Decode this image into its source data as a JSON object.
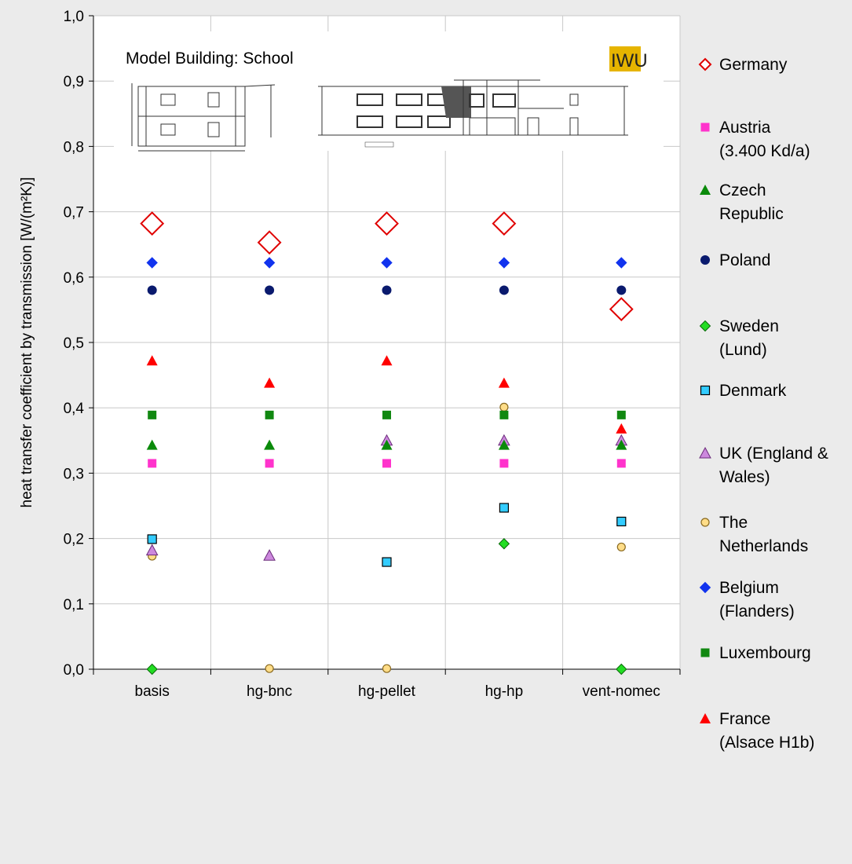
{
  "chart_data": {
    "type": "scatter",
    "title": "",
    "xlabel": "",
    "ylabel": "heat transfer coefficient by transmission [W/(m²K)]",
    "categories": [
      "basis",
      "hg-bnc",
      "hg-pellet",
      "hg-hp",
      "vent-nomec"
    ],
    "ylim": [
      0,
      1.0
    ],
    "yticks": [
      "0,0",
      "0,1",
      "0,2",
      "0,3",
      "0,4",
      "0,5",
      "0,6",
      "0,7",
      "0,8",
      "0,9",
      "1,0"
    ],
    "grid": true,
    "legend_position": "right",
    "inset_caption": "Model Building: School",
    "logo": {
      "text": "IWU",
      "color": "#e6b400"
    },
    "series": [
      {
        "name": [
          "Germany"
        ],
        "marker": "diamond-open-large",
        "color": "#e00000",
        "values": [
          0.682,
          0.653,
          0.682,
          0.682,
          0.551
        ]
      },
      {
        "name": [
          "Austria",
          "(3.400 Kd/a)"
        ],
        "marker": "square",
        "color": "#ff33cc",
        "values": [
          0.315,
          0.315,
          0.315,
          0.315,
          0.315
        ]
      },
      {
        "name": [
          "Czech",
          "Republic"
        ],
        "marker": "triangle",
        "color": "#0a8a0a",
        "values": [
          0.343,
          0.343,
          0.343,
          0.343,
          0.343
        ]
      },
      {
        "name": [
          "Poland"
        ],
        "marker": "circle",
        "color": "#0a1a6e",
        "values": [
          0.58,
          0.58,
          0.58,
          0.58,
          0.58
        ]
      },
      {
        "name": [
          "Sweden",
          "(Lund)"
        ],
        "marker": "diamond",
        "color": "#22dd22",
        "values": [
          0.0,
          null,
          null,
          0.192,
          0.0
        ]
      },
      {
        "name": [
          "Denmark"
        ],
        "marker": "square-open",
        "color": "#33ccff",
        "values": [
          0.199,
          null,
          0.164,
          0.247,
          0.226
        ]
      },
      {
        "name": [
          "UK (England &",
          "Wales)"
        ],
        "marker": "triangle-light",
        "color": "#cc88dd",
        "values": [
          0.182,
          0.174,
          0.35,
          0.35,
          0.35
        ]
      },
      {
        "name": [
          "The",
          "Netherlands"
        ],
        "marker": "circle-light",
        "color": "#ffdd88",
        "values": [
          0.173,
          0.001,
          0.001,
          0.401,
          0.187
        ]
      },
      {
        "name": [
          "Belgium",
          "(Flanders)"
        ],
        "marker": "diamond",
        "color": "#1133ee",
        "values": [
          0.622,
          0.622,
          0.622,
          0.622,
          0.622
        ]
      },
      {
        "name": [
          "Luxembourg"
        ],
        "marker": "square",
        "color": "#118811",
        "values": [
          0.389,
          0.389,
          0.389,
          0.389,
          0.389
        ]
      },
      {
        "name": [
          "France",
          "(Alsace H1b)"
        ],
        "marker": "triangle",
        "color": "#ff0000",
        "values": [
          0.472,
          0.438,
          0.472,
          0.438,
          0.368
        ]
      }
    ]
  }
}
